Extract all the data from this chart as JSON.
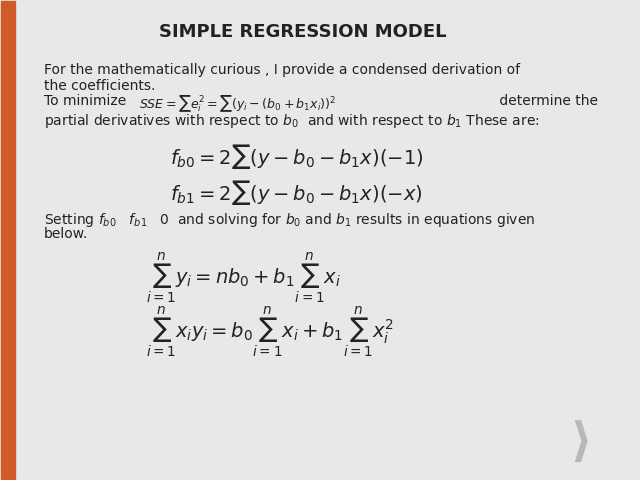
{
  "title": "SIMPLE REGRESSION MODEL",
  "title_fontsize": 13,
  "title_color": "#222222",
  "background_color": "#e8e8e8",
  "left_bar_color": "#d05a2a",
  "text_color": "#222222",
  "body_fontsize": 10,
  "math_fontsize": 13,
  "intro_text1": "For the mathematically curious , I provide a condensed derivation of",
  "intro_text2": "the coefficients.",
  "minimize_prefix": "To minimize",
  "minimize_suffix": " determine the",
  "setting_text1": "Setting",
  "setting_text2": "below.",
  "chevron_color": "#b8b8b8"
}
